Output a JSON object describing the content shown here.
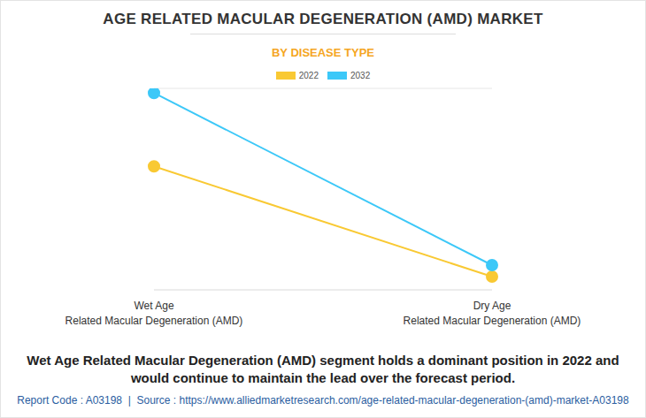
{
  "chart_data": {
    "type": "line",
    "title": "AGE RELATED MACULAR DEGENERATION (AMD) MARKET",
    "subtitle": "BY DISEASE TYPE",
    "categories": [
      "Wet Age Related Macular Degeneration (AMD)",
      "Dry Age Related Macular Degeneration (AMD)"
    ],
    "series": [
      {
        "name": "2022",
        "color": "#f9c933",
        "values": [
          4.29,
          0.46
        ],
        "marker": "circle"
      },
      {
        "name": "2032",
        "color": "#3cc8f8",
        "values": [
          6.84,
          0.86
        ],
        "marker": "circle"
      }
    ],
    "ylim": [
      0,
      7
    ],
    "yticks": [
      0,
      1,
      2,
      3,
      4,
      5,
      6,
      7
    ],
    "grid": true,
    "tick_labels": "x",
    "legend": "top",
    "annotations": [
      "Wet Age Related Macular Degeneration (AMD) segment holds a dominant position in 2022 and would continue to maintain the lead over the forecast period.",
      "Report Code : A03198  |  Source : https://www.alliedmarketresearch.com/age-related-macular-degeneration-(amd)-market-A03198"
    ]
  }
}
